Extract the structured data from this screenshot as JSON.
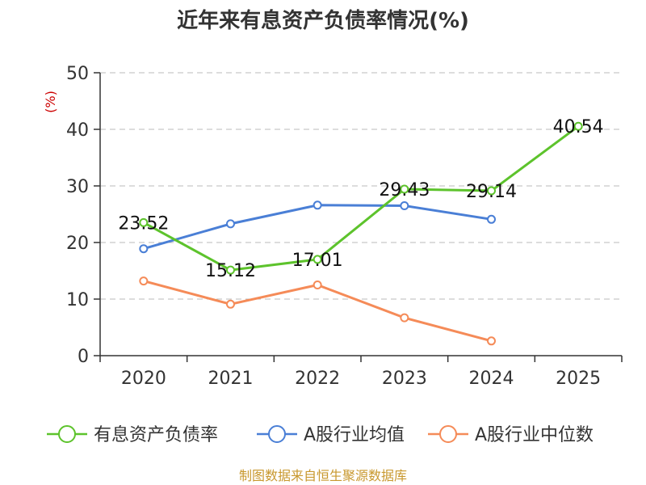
{
  "chart_data": {
    "type": "line",
    "title": "近年来有息资产负债率情况(%)",
    "ylabel": "(%)",
    "xlabel": "",
    "categories": [
      "2020",
      "2021",
      "2022",
      "2023",
      "2024",
      "2025"
    ],
    "ylim": [
      0,
      50
    ],
    "yticks": [
      0,
      10,
      20,
      30,
      40,
      50
    ],
    "grid": true,
    "legend_position": "bottom",
    "series": [
      {
        "name": "有息资产负债率",
        "color": "#5DC32C",
        "values": [
          23.52,
          15.12,
          17.01,
          29.43,
          29.14,
          40.54
        ],
        "labels": [
          "23.52",
          "15.12",
          "17.01",
          "29.43",
          "29.14",
          "40.54"
        ]
      },
      {
        "name": "A股行业均值",
        "color": "#4A7FD6",
        "values": [
          18.9,
          23.3,
          26.6,
          26.5,
          24.1,
          null
        ]
      },
      {
        "name": "A股行业中位数",
        "color": "#F58B58",
        "values": [
          13.2,
          9.1,
          12.5,
          6.7,
          2.6,
          null
        ]
      }
    ]
  },
  "colors": {
    "ylabel": "#CC0000",
    "source": "#C8982E",
    "axis": "#333333",
    "grid": "#BBBBBB"
  },
  "footer": {
    "source": "制图数据来自恒生聚源数据库"
  }
}
